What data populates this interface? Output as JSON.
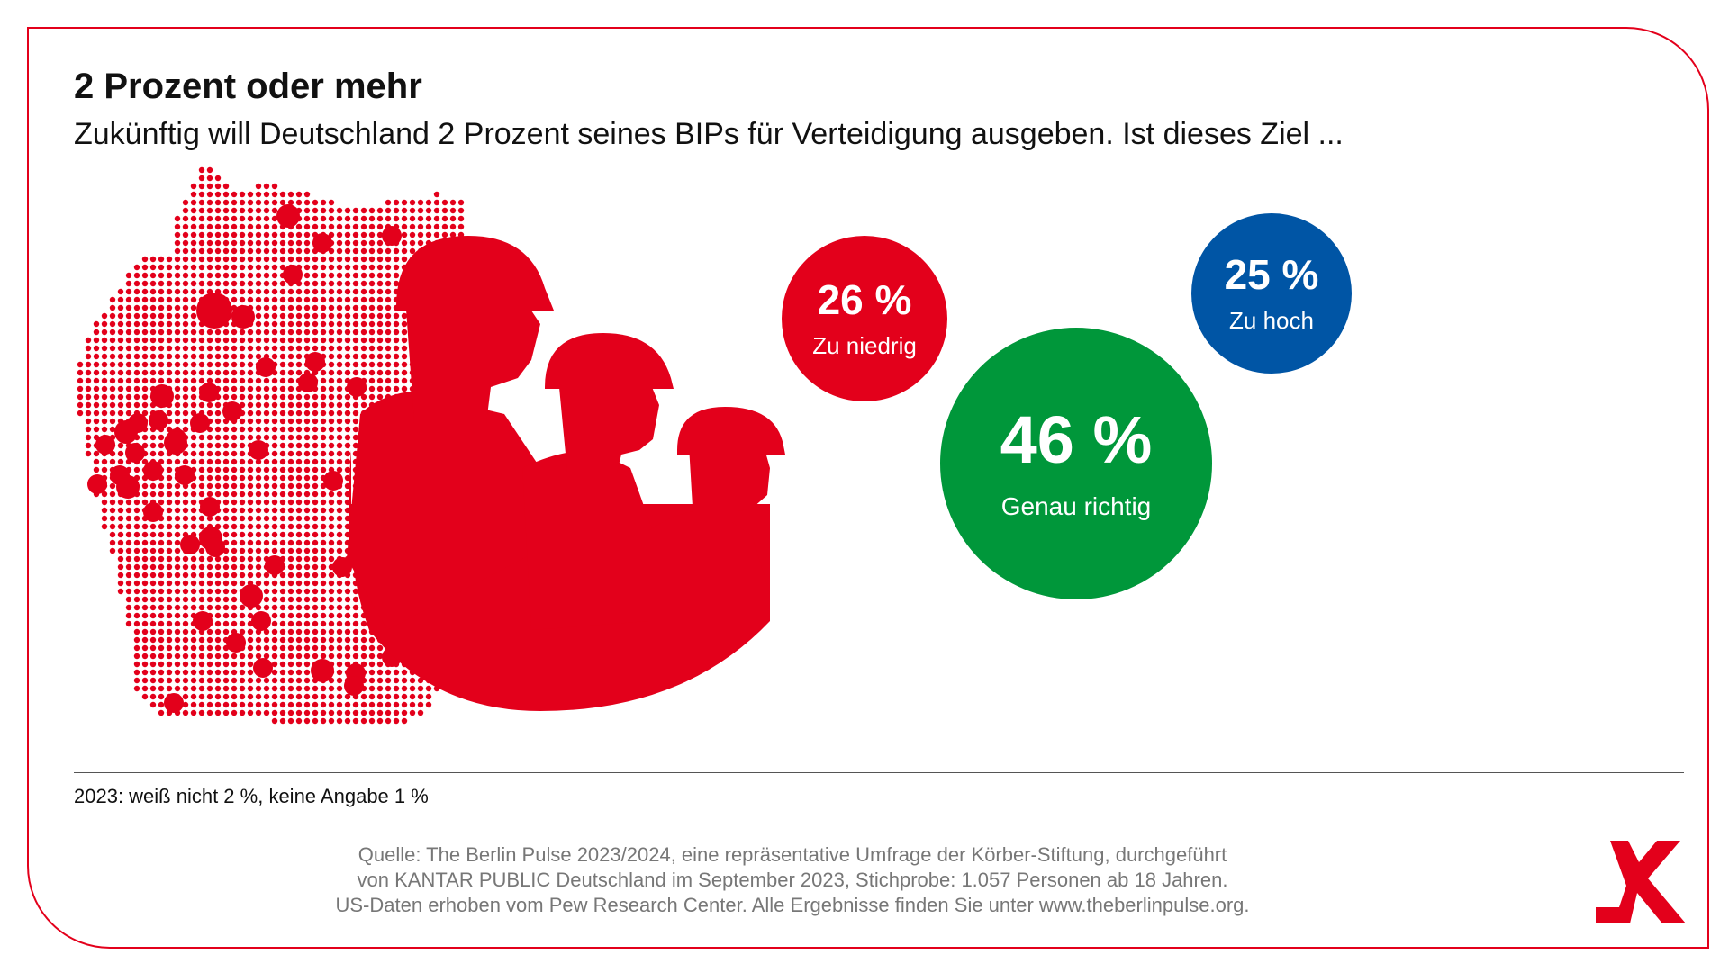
{
  "title": "2 Prozent oder mehr",
  "subtitle": "Zukünftig will Deutschland 2 Prozent seines BIPs für Verteidigung ausgeben. Ist dieses Ziel ...",
  "chart_data": {
    "type": "bubble",
    "title": "2 Prozent oder mehr",
    "subtitle": "Zukünftig will Deutschland 2 Prozent seines BIPs für Verteidigung ausgeben. Ist dieses Ziel ...",
    "categories": [
      "Zu niedrig",
      "Genau richtig",
      "Zu hoch"
    ],
    "values": [
      26,
      46,
      25
    ],
    "value_labels": [
      "26 %",
      "46 %",
      "25 %"
    ],
    "unit": "%",
    "colors": [
      "#e3001b",
      "#00973a",
      "#0055a5"
    ]
  },
  "footnote": "2023: weiß nicht 2 %, keine Angabe 1 %",
  "source": [
    "Quelle: The Berlin Pulse 2023/2024, eine repräsentative Umfrage der Körber-Stiftung, durchgeführt",
    "von KANTAR PUBLIC Deutschland im September 2023, Stichprobe: 1.057 Personen ab 18 Jahren.",
    "US-Daten erhoben vom Pew Research Center. Alle Ergebnisse finden Sie unter www.theberlinpulse.org."
  ],
  "colors": {
    "accent": "#e3001b",
    "text": "#111111",
    "source_text": "#777777"
  },
  "icons": {
    "illustration": "germany-map-with-soldiers-icon",
    "logo": "koerber-logo-icon"
  }
}
